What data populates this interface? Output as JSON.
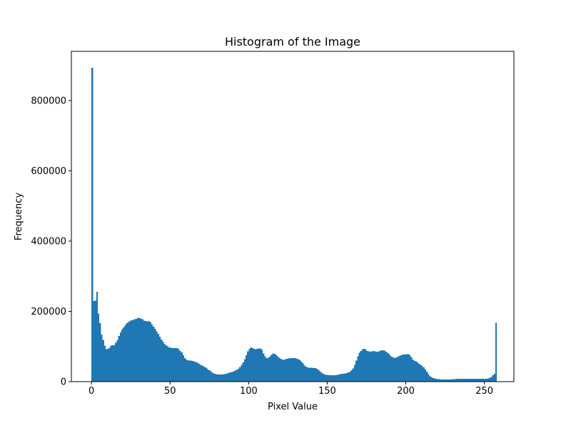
{
  "chart_data": {
    "type": "bar",
    "title": "Histogram of the Image",
    "xlabel": "Pixel Value",
    "ylabel": "Frequency",
    "xlim": [
      -12.8,
      268.8
    ],
    "ylim": [
      0,
      940000
    ],
    "xticks": [
      0,
      50,
      100,
      150,
      200,
      250
    ],
    "yticks": [
      0,
      200000,
      400000,
      600000,
      800000
    ],
    "ytick_labels": [
      "0",
      "200000",
      "400000",
      "600000",
      "800000"
    ],
    "bar_color": "#1f77b4",
    "grid": false,
    "bin_start": 0,
    "bin_width": 1,
    "values": [
      893000,
      229000,
      230000,
      256000,
      194000,
      166000,
      134000,
      119000,
      103000,
      92000,
      93000,
      96000,
      103000,
      104000,
      104000,
      111000,
      118000,
      130000,
      140000,
      148000,
      154000,
      160000,
      166000,
      170000,
      173000,
      175000,
      176000,
      178000,
      179000,
      182000,
      181000,
      180000,
      178000,
      174000,
      173000,
      172000,
      173000,
      170000,
      162000,
      156000,
      150000,
      143000,
      136000,
      128000,
      120000,
      114000,
      108000,
      104000,
      100000,
      97000,
      96000,
      95000,
      95000,
      95000,
      95000,
      92000,
      87000,
      83000,
      75000,
      67000,
      62000,
      61000,
      60000,
      60000,
      59000,
      57000,
      56000,
      54000,
      51000,
      48000,
      46000,
      44000,
      41000,
      38000,
      34000,
      31000,
      27000,
      24000,
      22000,
      21000,
      20000,
      20000,
      20000,
      20000,
      21000,
      22000,
      23000,
      25000,
      26000,
      27000,
      29000,
      31000,
      34000,
      37000,
      42000,
      48000,
      55000,
      64000,
      75000,
      86000,
      93000,
      97000,
      95000,
      93000,
      92000,
      93000,
      94000,
      94000,
      91000,
      80000,
      72000,
      67000,
      68000,
      71000,
      76000,
      80000,
      79000,
      76000,
      72000,
      68000,
      65000,
      63000,
      62000,
      64000,
      65000,
      66000,
      67000,
      67000,
      67000,
      67000,
      66000,
      64000,
      62000,
      58000,
      53000,
      47000,
      43000,
      41000,
      40000,
      40000,
      40000,
      39000,
      39000,
      37000,
      34000,
      29000,
      25000,
      22000,
      20000,
      19000,
      19000,
      18000,
      18000,
      18000,
      18000,
      18000,
      19000,
      20000,
      21000,
      22000,
      22000,
      23000,
      24000,
      26000,
      28000,
      32000,
      38000,
      48000,
      60000,
      72000,
      82000,
      87000,
      92000,
      93000,
      91000,
      87000,
      86000,
      85000,
      86000,
      87000,
      86000,
      85000,
      85000,
      87000,
      89000,
      89000,
      88000,
      85000,
      82000,
      78000,
      73000,
      70000,
      68000,
      68000,
      70000,
      72000,
      74000,
      76000,
      77000,
      77000,
      78000,
      78000,
      76000,
      70000,
      63000,
      60000,
      58000,
      55000,
      51000,
      48000,
      45000,
      41000,
      35000,
      28000,
      21000,
      15000,
      12000,
      10000,
      9000,
      8000,
      7000,
      7000,
      6000,
      6000,
      6000,
      6000,
      6000,
      6000,
      6000,
      7000,
      7000,
      7000,
      8000,
      8000,
      8000,
      8000,
      8000,
      8000,
      8000,
      8000,
      8000,
      8000,
      8000,
      8000,
      8000,
      8000,
      8000,
      8000,
      8000,
      8000,
      8000,
      8000,
      9000,
      11000,
      13000,
      18000,
      22000,
      168000
    ]
  }
}
